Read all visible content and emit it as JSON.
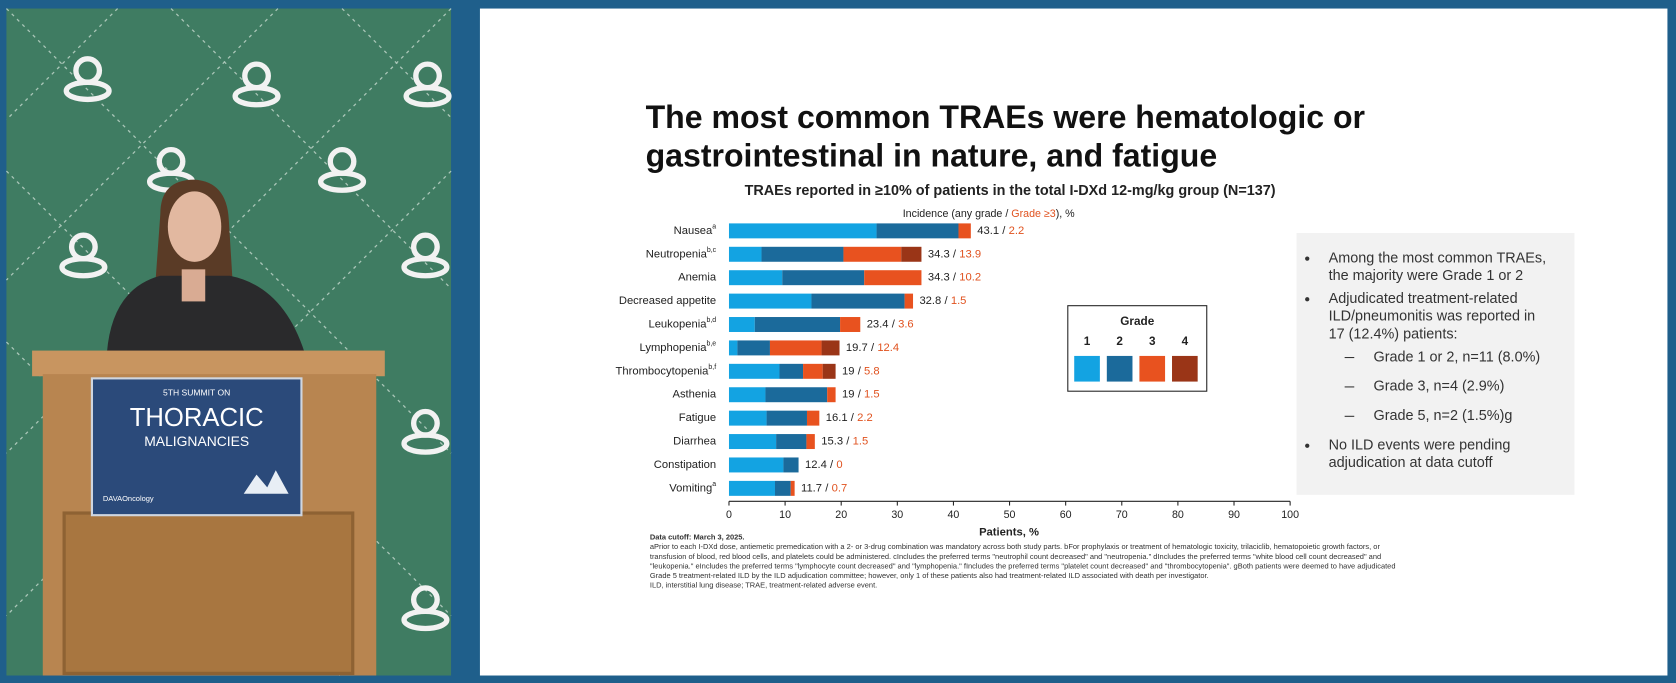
{
  "chart_data": {
    "type": "stacked_barh",
    "title": [
      "The most common TRAEs were hematologic or",
      "gastrointestinal in nature, and fatigue"
    ],
    "subtitle": "TRAEs reported in ≥10% of patients in the total I-DXd 12-mg/kg group (N=137)",
    "incidence_label": [
      "Incidence (any grade / ",
      "Grade ≥3",
      "), %"
    ],
    "xlabel": "Patients, %",
    "categories": [
      "Nausea",
      "Neutropenia",
      "Anemia",
      "Decreased appetite",
      "Leukopenia",
      "Lymphopenia",
      "Thrombocytopenia",
      "Asthenia",
      "Fatigue",
      "Diarrhea",
      "Constipation",
      "Vomiting"
    ],
    "category_notes": [
      "a",
      "b,c",
      null,
      null,
      "b,d",
      "b,e",
      "b,f",
      null,
      null,
      null,
      null,
      "a"
    ],
    "legend_title": "Grade",
    "series": [
      {
        "name": "1",
        "color": "#13a3e2",
        "values": [
          26.3,
          5.8,
          9.5,
          14.7,
          4.6,
          1.5,
          9.0,
          6.5,
          6.7,
          8.4,
          9.7,
          8.2
        ]
      },
      {
        "name": "2",
        "color": "#1b6a9b",
        "values": [
          14.6,
          14.6,
          14.6,
          16.6,
          15.2,
          5.8,
          4.2,
          11.0,
          7.2,
          5.4,
          2.7,
          2.8
        ]
      },
      {
        "name": "3",
        "color": "#e8521f",
        "values": [
          2.2,
          10.3,
          10.2,
          1.5,
          3.6,
          9.2,
          3.5,
          1.5,
          2.2,
          1.5,
          0,
          0.7
        ]
      },
      {
        "name": "4",
        "color": "#9a3517",
        "values": [
          0,
          3.6,
          0,
          0,
          0,
          3.2,
          2.3,
          0,
          0,
          0,
          0,
          0
        ]
      }
    ],
    "any_grade": [
      43.1,
      34.3,
      34.3,
      32.8,
      23.4,
      19.7,
      19.0,
      19.0,
      16.1,
      15.3,
      12.4,
      11.7
    ],
    "grade3_plus": [
      2.2,
      13.9,
      10.2,
      1.5,
      3.6,
      12.4,
      5.8,
      1.5,
      2.2,
      1.5,
      0,
      0.7
    ],
    "label_separator": "/",
    "xlim": [
      0,
      100
    ],
    "xticks": [
      0,
      10,
      20,
      30,
      40,
      50,
      60,
      70,
      80,
      90,
      100
    ],
    "grid": false
  },
  "bullets": [
    {
      "level": 1,
      "lines": [
        "Among the most common TRAEs,",
        "the majority were Grade 1 or 2"
      ]
    },
    {
      "level": 1,
      "lines": [
        "Adjudicated treatment-related",
        "ILD/pneumonitis was reported in",
        "17 (12.4%) patients:"
      ]
    },
    {
      "level": 2,
      "lines": [
        "Grade 1 or 2, n=11 (8.0%)"
      ]
    },
    {
      "level": 2,
      "lines": [
        "Grade 3, n=4 (2.9%)"
      ]
    },
    {
      "level": 2,
      "lines": [
        "Grade 5, n=2 (1.5%)g"
      ]
    },
    {
      "level": 1,
      "lines": [
        "No ILD events were pending",
        "adjudication at data cutoff"
      ]
    }
  ],
  "footnotes": [
    "Data cutoff: March 3, 2025.",
    "aPrior to each I-DXd dose, antiemetic premedication with a 2- or 3-drug combination was mandatory across both study parts. bFor prophylaxis or treatment of hematologic toxicity, trilaciclib, hematopoietic growth factors, or",
    "transfusion of blood, red blood cells, and platelets could be administered. cIncludes the preferred terms \"neutrophil count decreased\" and \"neutropenia.\" dIncludes the preferred terms \"white blood cell count decreased\" and",
    "\"leukopenia.\" eIncludes the preferred terms \"lymphocyte count decreased\" and \"lymphopenia.\" fIncludes the preferred terms \"platelet count decreased\" and \"thrombocytopenia\". gBoth patients were deemed to have adjudicated",
    "Grade 5 treatment-related ILD by the ILD adjudication committee; however, only 1 of these patients also had treatment-related ILD associated with death per investigator.",
    "ILD, interstitial lung disease; TRAE, treatment-related adverse event."
  ],
  "podium": {
    "line1": "5TH SUMMIT ON",
    "line2": "THORACIC",
    "line3": "MALIGNANCIES",
    "brand": "DAVAOncology"
  }
}
